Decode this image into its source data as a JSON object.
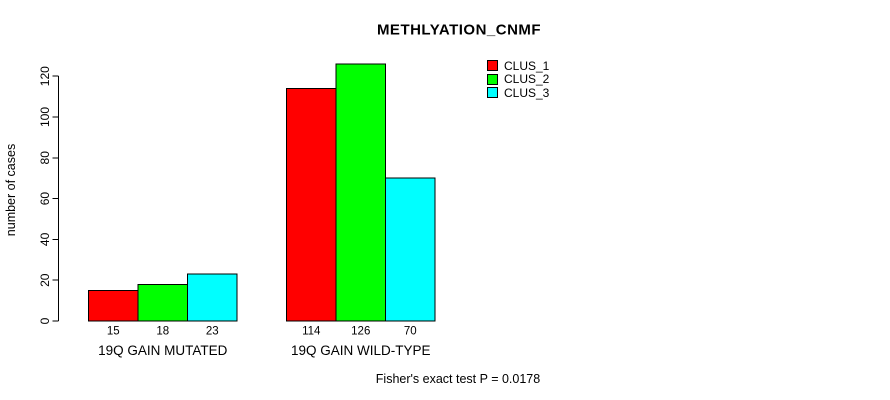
{
  "title": "METHLYATION_CNMF",
  "y_axis_label": "number of cases",
  "footer_note": "Fisher's exact test P = 0.0178",
  "chart_data": {
    "type": "bar",
    "title": "METHLYATION_CNMF",
    "xlabel": "",
    "ylabel": "number of cases",
    "categories": [
      "19Q GAIN MUTATED",
      "19Q GAIN WILD-TYPE"
    ],
    "series": [
      {
        "name": "CLUS_1",
        "color": "#FF0000",
        "values": [
          15,
          114
        ]
      },
      {
        "name": "CLUS_2",
        "color": "#00FF00",
        "values": [
          18,
          126
        ]
      },
      {
        "name": "CLUS_3",
        "color": "#00FFFF",
        "values": [
          23,
          70
        ]
      }
    ],
    "bar_value_labels": [
      [
        15,
        18,
        23
      ],
      [
        114,
        126,
        70
      ]
    ],
    "yticks": [
      0,
      20,
      40,
      60,
      80,
      100,
      120
    ],
    "ylim": [
      0,
      126
    ],
    "grid": false,
    "legend_position": "top-right",
    "bar_border_color": "#000000",
    "annotation": "Fisher's exact test P = 0.0178"
  }
}
